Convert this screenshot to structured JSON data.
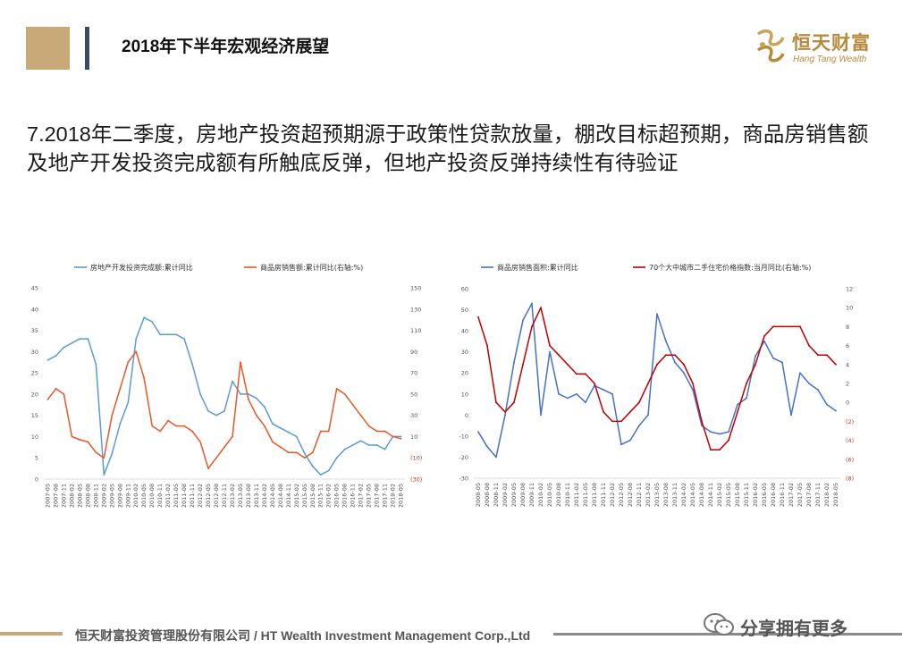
{
  "header": {
    "title": "2018年下半年宏观经济展望"
  },
  "logo": {
    "name_cn": "恒天财富",
    "name_en": "Hang Tang Wealth",
    "color": "#b88a3c"
  },
  "headline": "7.2018年二季度，房地产投资超预期源于政策性贷款放量，棚改目标超预期，商品房销售额及地产开发投资完成额有所触底反弹，但地产投资反弹持续性有待验证",
  "footer": {
    "company": "恒天财富投资管理股份有限公司 / HT Wealth  Investment Management Corp.,Ltd",
    "watermark": "分享拥有更多"
  },
  "chart_data": [
    {
      "type": "line",
      "x": [
        "2007-05",
        "2007-08",
        "2007-11",
        "2008-02",
        "2008-05",
        "2008-08",
        "2008-11",
        "2009-02",
        "2009-05",
        "2009-08",
        "2009-11",
        "2010-02",
        "2010-05",
        "2010-08",
        "2010-11",
        "2011-02",
        "2011-05",
        "2011-08",
        "2011-11",
        "2012-02",
        "2012-05",
        "2012-08",
        "2012-11",
        "2013-02",
        "2013-05",
        "2013-08",
        "2013-11",
        "2014-02",
        "2014-05",
        "2014-08",
        "2014-11",
        "2015-02",
        "2015-05",
        "2015-08",
        "2015-11",
        "2016-02",
        "2016-05",
        "2016-08",
        "2016-11",
        "2017-02",
        "2017-05",
        "2017-08",
        "2017-11",
        "2018-02",
        "2018-05"
      ],
      "series": [
        {
          "name": "房地产开发投资完成额:累计同比",
          "axis": "left",
          "color": "#5b9bd5",
          "values": [
            28,
            29,
            31,
            32,
            33,
            33,
            27,
            1,
            6,
            13,
            18,
            33,
            38,
            37,
            34,
            34,
            34,
            33,
            27,
            20,
            16,
            15,
            16,
            23,
            20,
            20,
            19,
            17,
            13,
            12,
            11,
            10,
            6,
            3,
            1,
            2,
            5,
            7,
            8,
            9,
            8,
            8,
            7,
            10,
            10
          ]
        },
        {
          "name": "商品房销售额:累计同比(右轴:%)",
          "axis": "right",
          "color": "#e5592a",
          "values": [
            45,
            55,
            50,
            10,
            7,
            5,
            -5,
            -10,
            30,
            55,
            80,
            90,
            65,
            20,
            15,
            25,
            20,
            20,
            15,
            5,
            -20,
            -10,
            0,
            10,
            80,
            45,
            30,
            20,
            5,
            0,
            -5,
            -5,
            -10,
            -5,
            15,
            15,
            55,
            50,
            40,
            30,
            20,
            15,
            15,
            10,
            8
          ]
        }
      ],
      "ylim": [
        0,
        45
      ],
      "y2lim": [
        -30,
        150
      ],
      "yticks": [
        "45",
        "40",
        "35",
        "30",
        "25",
        "20",
        "15",
        "10",
        "5",
        "0"
      ],
      "y2ticks": [
        "150",
        "130",
        "110",
        "90",
        "70",
        "50",
        "30",
        "10",
        "(10)",
        "(30)"
      ]
    },
    {
      "type": "line",
      "x": [
        "2008-05",
        "2008-08",
        "2008-11",
        "2009-02",
        "2009-05",
        "2009-08",
        "2009-11",
        "2010-02",
        "2010-05",
        "2010-08",
        "2010-11",
        "2011-02",
        "2011-05",
        "2011-08",
        "2011-11",
        "2012-02",
        "2012-05",
        "2012-08",
        "2012-11",
        "2013-02",
        "2013-05",
        "2013-08",
        "2013-11",
        "2014-02",
        "2014-05",
        "2014-08",
        "2014-11",
        "2015-02",
        "2015-05",
        "2015-08",
        "2015-11",
        "2016-02",
        "2016-05",
        "2016-08",
        "2016-11",
        "2017-02",
        "2017-05",
        "2017-08",
        "2017-11",
        "2018-02",
        "2018-05"
      ],
      "series": [
        {
          "name": "商品房销售面积:累计同比",
          "axis": "left",
          "color": "#4472c4",
          "values": [
            -8,
            -15,
            -20,
            0,
            25,
            45,
            53,
            0,
            30,
            10,
            8,
            10,
            6,
            14,
            12,
            10,
            -14,
            -12,
            -5,
            0,
            48,
            35,
            25,
            20,
            12,
            -5,
            -8,
            -9,
            -8,
            5,
            8,
            28,
            35,
            27,
            25,
            0,
            20,
            15,
            12,
            5,
            2
          ]
        },
        {
          "name": "70个大中城市二手住宅价格指数:当月同比(右轴:%)",
          "axis": "right",
          "color": "#c00000",
          "values": [
            9,
            6,
            0,
            -1,
            0,
            4,
            8,
            10,
            6,
            5,
            4,
            3,
            3,
            2,
            -1,
            -2,
            -2,
            -1,
            0,
            2,
            4,
            5,
            5,
            4,
            2,
            -2,
            -5,
            -5,
            -4,
            -1,
            2,
            4,
            7,
            8,
            8,
            8,
            8,
            6,
            5,
            5,
            4
          ]
        }
      ],
      "ylim": [
        -30,
        60
      ],
      "y2lim": [
        -8,
        12
      ],
      "yticks": [
        "60",
        "50",
        "40",
        "30",
        "20",
        "10",
        "0",
        "-10",
        "-20",
        "-30"
      ],
      "y2ticks": [
        "12",
        "10",
        "8",
        "6",
        "4",
        "2",
        "0",
        "(2)",
        "(4)",
        "(6)",
        "(8)"
      ]
    }
  ]
}
